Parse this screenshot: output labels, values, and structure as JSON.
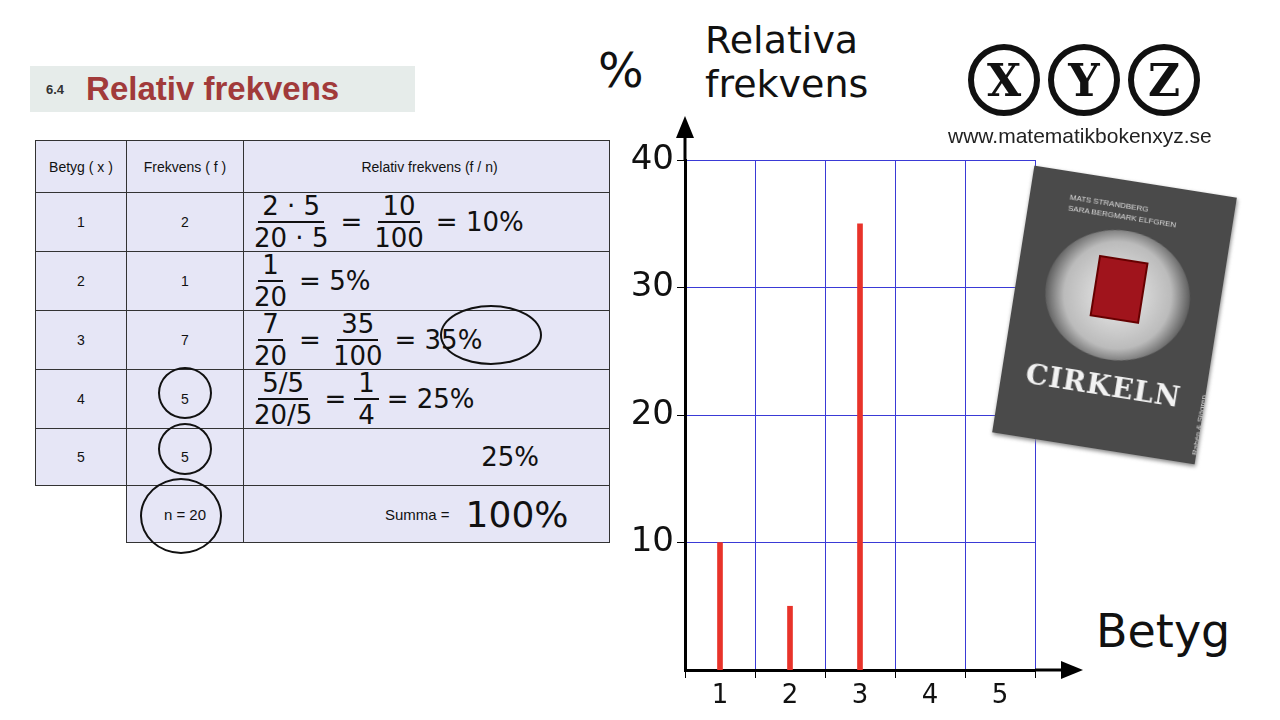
{
  "header": {
    "section": "6.4",
    "title": "Relativ frekvens"
  },
  "table": {
    "columns": [
      "Betyg ( x )",
      "Frekvens ( f )",
      "Relativ frekvens (f / n)"
    ],
    "rows": [
      [
        "1",
        "2",
        [
          {
            "num": "2 · 5",
            "den": "20 · 5"
          },
          "=",
          {
            "num": "10",
            "den": "100"
          },
          "= 10%"
        ]
      ],
      [
        "2",
        "1",
        [
          {
            "num": "1",
            "den": "20"
          },
          "= 5%"
        ]
      ],
      [
        "3",
        "7",
        [
          {
            "num": "7",
            "den": "20"
          },
          "=",
          {
            "num": "35",
            "den": "100"
          },
          "= 35%"
        ]
      ],
      [
        "4",
        "5",
        [
          {
            "num": "5/5",
            "den": "20/5"
          },
          "=",
          {
            "num": "1",
            "den": "4"
          },
          "= 25%"
        ]
      ],
      [
        "5",
        "5",
        [
          "25%"
        ]
      ]
    ],
    "footer": [
      "n = 20",
      "Summa =",
      "100%"
    ]
  },
  "chart_data": {
    "type": "bar",
    "title": "Relativa frekvens",
    "ylabel": "%",
    "xlabel": "Betyg",
    "categories": [
      1,
      2,
      3,
      4,
      5
    ],
    "values": [
      10,
      5,
      35,
      null,
      null
    ],
    "color": "#e8332a",
    "ylim": [
      0,
      40
    ],
    "yticks": [
      10,
      20,
      30,
      40
    ],
    "grid": true
  },
  "logo": {
    "letters": [
      "X",
      "Y",
      "Z"
    ],
    "url": "www.matematikbokenxyz.se"
  },
  "book": {
    "authors": [
      "MATS STRANDBERG",
      "SARA BERGMARK ELFGREN"
    ],
    "title": "CIRKELN",
    "publisher": "Rabén & Sjögren"
  }
}
